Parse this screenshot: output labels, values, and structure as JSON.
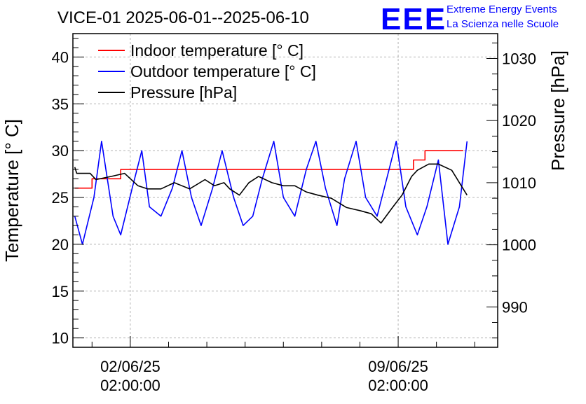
{
  "chart_data": {
    "type": "line",
    "title": "VICE-01 2025-06-01--2025-06-10",
    "ylabel": "Temperature [° C]",
    "y2label": "Pressure [hPa]",
    "ylim": [
      9,
      42.5
    ],
    "y2lim": [
      983.5,
      1034
    ],
    "yticks": [
      10,
      15,
      20,
      25,
      30,
      35,
      40
    ],
    "y2ticks": [
      990,
      1000,
      1010,
      1020,
      1030
    ],
    "xlim": [
      0,
      11.1
    ],
    "xticks": [
      {
        "x": 1.5,
        "line1": "02/06/25",
        "line2": "02:00:00"
      },
      {
        "x": 8.5,
        "line1": "09/06/25",
        "line2": "02:00:00"
      }
    ],
    "grid": true,
    "legend_position": "top-left",
    "series": [
      {
        "name": "Indoor temperature [° C]",
        "axis": "left",
        "color": "#ff0000",
        "x": [
          0.05,
          0.5,
          0.5,
          1.25,
          1.25,
          8.9,
          8.9,
          9.2,
          9.2,
          10.2
        ],
        "y": [
          26,
          26,
          27,
          27,
          28,
          28,
          29,
          29,
          30,
          30
        ]
      },
      {
        "name": "Outdoor temperature [° C]",
        "axis": "left",
        "color": "#0000ff",
        "x": [
          0.05,
          0.25,
          0.55,
          0.75,
          1.05,
          1.25,
          1.55,
          1.8,
          2.0,
          2.3,
          2.6,
          2.85,
          3.1,
          3.35,
          3.65,
          3.9,
          4.2,
          4.45,
          4.7,
          4.95,
          5.25,
          5.5,
          5.8,
          6.1,
          6.35,
          6.6,
          6.9,
          7.1,
          7.4,
          7.65,
          7.95,
          8.2,
          8.45,
          8.7,
          9.0,
          9.25,
          9.55,
          9.8,
          10.1,
          10.3
        ],
        "y": [
          23,
          20,
          25,
          31,
          23,
          21,
          26,
          30,
          24,
          23,
          26,
          30,
          25,
          22,
          26,
          30,
          25,
          22,
          23,
          27,
          31,
          25,
          23,
          28,
          31,
          26,
          22,
          27,
          31,
          25,
          23,
          27,
          31,
          24,
          21,
          24,
          29,
          20,
          24,
          31
        ]
      },
      {
        "name": "Pressure [hPa]",
        "axis": "right",
        "color": "#000000",
        "x": [
          0.05,
          0.1,
          0.45,
          0.6,
          1.0,
          1.35,
          1.7,
          1.95,
          2.3,
          2.65,
          3.05,
          3.45,
          3.7,
          3.95,
          4.1,
          4.35,
          4.6,
          4.85,
          5.2,
          5.5,
          5.8,
          6.1,
          6.4,
          6.75,
          7.15,
          7.5,
          7.8,
          8.05,
          8.35,
          8.6,
          8.85,
          9.0,
          9.3,
          9.55,
          9.9,
          10.1,
          10.3
        ],
        "y": [
          1012.5,
          1011.5,
          1011.5,
          1010.5,
          1011,
          1011.5,
          1009.5,
          1009,
          1009,
          1010,
          1009,
          1010.5,
          1009.5,
          1010,
          1009,
          1008,
          1010,
          1011,
          1010,
          1009.5,
          1009.5,
          1008.5,
          1008,
          1007.5,
          1006,
          1005.5,
          1005,
          1003.5,
          1006,
          1008,
          1011,
          1012,
          1013,
          1013,
          1012,
          1010,
          1008
        ]
      }
    ]
  },
  "logo": {
    "letters": "EEE",
    "line1": "Extreme Energy Events",
    "line2": "La Scienza nelle Scuole"
  }
}
